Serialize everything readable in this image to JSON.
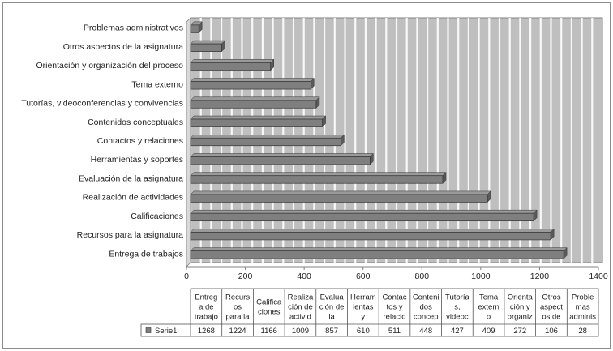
{
  "chart_data": {
    "type": "bar",
    "orientation": "horizontal",
    "categories": [
      "Entrega de trabajos",
      "Recursos para la asignatura",
      "Calificaciones",
      "Realización de actividades",
      "Evaluación de la asignatura",
      "Herramientas y soportes",
      "Contactos y relaciones",
      "Contenidos conceptuales",
      "Tutorías, videoconferencias y convivencias",
      "Tema externo",
      "Orientación y organización del proceso",
      "Otros aspectos de la asignatura",
      "Problemas administrativos"
    ],
    "series": [
      {
        "name": "Serie1",
        "values": [
          1268,
          1224,
          1166,
          1009,
          857,
          610,
          511,
          448,
          427,
          409,
          272,
          106,
          28
        ]
      }
    ],
    "xlim": [
      0,
      1400
    ],
    "x_ticks": [
      "0",
      "200",
      "400",
      "600",
      "800",
      "1000",
      "1200",
      "1400"
    ],
    "grid": true,
    "plot_background": "#bfbfbf",
    "bar_color": "#7f7f7f",
    "table": {
      "headers": [
        [
          "Entreg",
          "a de",
          "trabajo"
        ],
        [
          "Recurs",
          "os",
          "para la"
        ],
        [
          "Califica",
          "ciones"
        ],
        [
          "Realiza",
          "ción de",
          "activid"
        ],
        [
          "Evalua",
          "ción de",
          "la"
        ],
        [
          "Herram",
          "ientas",
          "y"
        ],
        [
          "Contac",
          "tos y",
          "relacio"
        ],
        [
          "Conteni",
          "dos",
          "concep"
        ],
        [
          "Tutoría",
          "s,",
          "videoc"
        ],
        [
          "Tema",
          "extern",
          "o"
        ],
        [
          "Orienta",
          "ción y",
          "organiz"
        ],
        [
          "Otros",
          "aspect",
          "os de"
        ],
        [
          "Proble",
          "mas",
          "adminis"
        ]
      ],
      "values": [
        "1268",
        "1224",
        "1166",
        "1009",
        "857",
        "610",
        "511",
        "448",
        "427",
        "409",
        "272",
        "106",
        "28"
      ]
    }
  }
}
